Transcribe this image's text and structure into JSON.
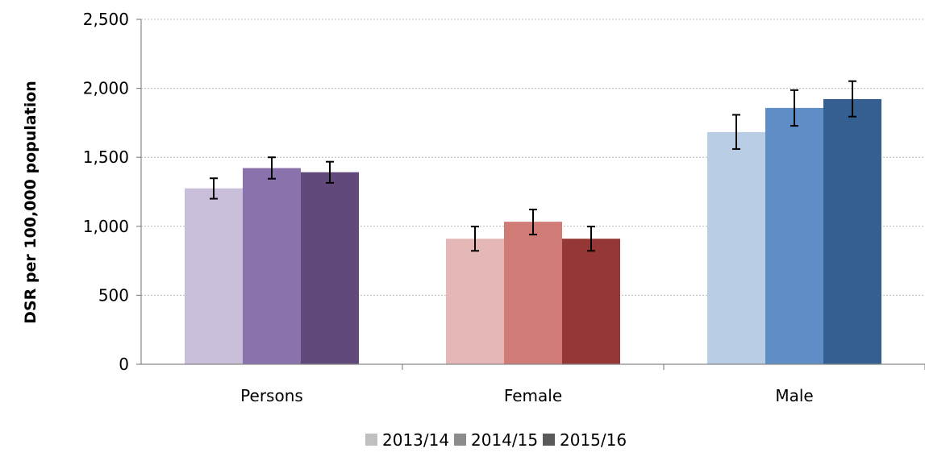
{
  "chart_data": {
    "type": "bar",
    "title": "",
    "xlabel": "",
    "ylabel": "DSR per 100,000 population",
    "ylim": [
      0,
      2500
    ],
    "yticks": [
      0,
      500,
      1000,
      1500,
      2000,
      2500
    ],
    "ytick_labels": [
      "0",
      "500",
      "1,000",
      "1,500",
      "2,000",
      "2,500"
    ],
    "grid": true,
    "legend_position": "bottom",
    "categories": [
      "Persons",
      "Female",
      "Male"
    ],
    "series": [
      {
        "name": "2013/14",
        "values": [
          1275,
          910,
          1683
        ],
        "err_low": [
          1200,
          822,
          1560
        ],
        "err_high": [
          1348,
          998,
          1808
        ]
      },
      {
        "name": "2014/15",
        "values": [
          1422,
          1033,
          1858
        ],
        "err_low": [
          1345,
          940,
          1728
        ],
        "err_high": [
          1500,
          1122,
          1987
        ]
      },
      {
        "name": "2015/16",
        "values": [
          1392,
          910,
          1922
        ],
        "err_low": [
          1315,
          822,
          1795
        ],
        "err_high": [
          1468,
          998,
          2052
        ]
      }
    ],
    "colors": {
      "Persons": [
        "#c9bfdb",
        "#8a72ad",
        "#614a7b"
      ],
      "Female": [
        "#e5b8b7",
        "#d17b77",
        "#953735"
      ],
      "Male": [
        "#b9cde5",
        "#5f8dc6",
        "#365f91"
      ]
    },
    "legend_colors": [
      "#c0c0c0",
      "#8c8c8c",
      "#5a5a5a"
    ]
  }
}
